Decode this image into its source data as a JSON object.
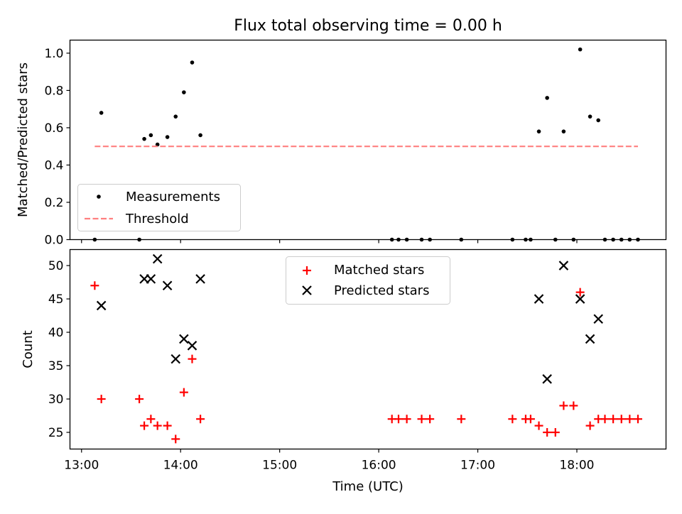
{
  "figure": {
    "title": "Flux total observing time = 0.00 h"
  },
  "chart_data": [
    {
      "type": "scatter",
      "ylabel": "Matched/Predicted stars",
      "xlabel": "",
      "xlim": [
        "12:53",
        "18:54"
      ],
      "ylim": [
        0,
        1.07
      ],
      "yticks": [
        0.0,
        0.2,
        0.4,
        0.6,
        0.8,
        1.0
      ],
      "ytick_labels": [
        "0.0",
        "0.2",
        "0.4",
        "0.6",
        "0.8",
        "1.0"
      ],
      "xticks": [
        "13:00",
        "14:00",
        "15:00",
        "16:00",
        "17:00",
        "18:00"
      ],
      "grid": false,
      "legend_position": "lower-left",
      "series": [
        {
          "name": "Measurements",
          "marker": "dot",
          "color": "#000000",
          "x": [
            "13:08",
            "13:12",
            "13:35",
            "13:38",
            "13:42",
            "13:46",
            "13:52",
            "13:57",
            "14:02",
            "14:07",
            "14:12",
            "16:08",
            "16:12",
            "16:17",
            "16:26",
            "16:31",
            "16:50",
            "17:21",
            "17:29",
            "17:32",
            "17:37",
            "17:42",
            "17:47",
            "17:52",
            "17:58",
            "18:02",
            "18:08",
            "18:13",
            "18:17",
            "18:22",
            "18:27",
            "18:32",
            "18:37"
          ],
          "y": [
            0.0,
            0.68,
            0.0,
            0.54,
            0.56,
            0.51,
            0.55,
            0.66,
            0.79,
            0.95,
            0.56,
            0.0,
            0.0,
            0.0,
            0.0,
            0.0,
            0.0,
            0.0,
            0.0,
            0.0,
            0.58,
            0.76,
            0.0,
            0.58,
            0.0,
            1.02,
            0.66,
            0.64,
            0.0,
            0.0,
            0.0,
            0.0,
            0.0
          ]
        },
        {
          "name": "Threshold",
          "style": "dashed",
          "color": "#ff7f7f",
          "x": [
            "13:08",
            "18:37"
          ],
          "y": [
            0.5,
            0.5
          ]
        }
      ]
    },
    {
      "type": "scatter",
      "ylabel": "Count",
      "xlabel": "Time (UTC)",
      "xlim": [
        "12:53",
        "18:54"
      ],
      "ylim": [
        22.5,
        52.4
      ],
      "yticks": [
        25,
        30,
        35,
        40,
        45,
        50
      ],
      "ytick_labels": [
        "25",
        "30",
        "35",
        "40",
        "45",
        "50"
      ],
      "xticks": [
        "13:00",
        "14:00",
        "15:00",
        "16:00",
        "17:00",
        "18:00"
      ],
      "grid": false,
      "legend_position": "upper-center",
      "series": [
        {
          "name": "Matched stars",
          "marker": "plus",
          "color": "#ff0000",
          "x": [
            "13:08",
            "13:12",
            "13:35",
            "13:38",
            "13:42",
            "13:46",
            "13:52",
            "13:57",
            "14:02",
            "14:07",
            "14:12",
            "16:08",
            "16:12",
            "16:17",
            "16:26",
            "16:31",
            "16:50",
            "17:21",
            "17:29",
            "17:32",
            "17:37",
            "17:42",
            "17:47",
            "17:52",
            "17:58",
            "18:02",
            "18:08",
            "18:13",
            "18:17",
            "18:22",
            "18:27",
            "18:32",
            "18:37"
          ],
          "y": [
            47,
            30,
            30,
            26,
            27,
            26,
            26,
            24,
            31,
            36,
            27,
            27,
            27,
            27,
            27,
            27,
            27,
            27,
            27,
            27,
            26,
            25,
            25,
            29,
            29,
            46,
            26,
            27,
            27,
            27,
            27,
            27,
            27
          ]
        },
        {
          "name": "Predicted stars",
          "marker": "x",
          "color": "#000000",
          "x": [
            "13:12",
            "13:38",
            "13:42",
            "13:46",
            "13:52",
            "13:57",
            "14:02",
            "14:07",
            "14:12",
            "17:37",
            "17:42",
            "17:52",
            "18:02",
            "18:08",
            "18:13"
          ],
          "y": [
            44,
            48,
            48,
            51,
            47,
            36,
            39,
            38,
            48,
            45,
            33,
            50,
            45,
            39,
            42
          ]
        }
      ]
    }
  ]
}
